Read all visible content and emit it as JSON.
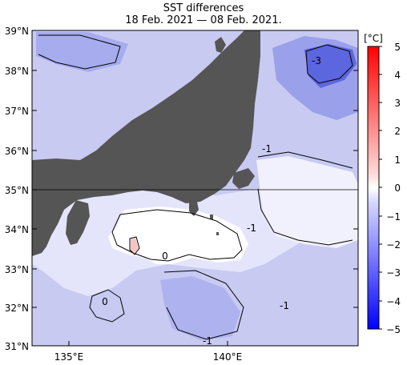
{
  "map": {
    "title": "SST differences",
    "subtitle": "18 Feb. 2021 — 08 Feb. 2021.",
    "lat_labels": [
      "39°N",
      "38°N",
      "37°N",
      "36°N",
      "35°N",
      "34°N",
      "33°N",
      "32°N",
      "31°N"
    ],
    "lon_labels": [
      "135°E",
      "140°E"
    ],
    "contour_labels": [
      "-3",
      "-1",
      "-1",
      "0",
      "0",
      "-1",
      "-1"
    ],
    "colors": {
      "land": "#555555",
      "ocean_zero": "#ffffff",
      "ocean_neg": "#c6c8f2",
      "ocean_neg2": "#9ea4ec",
      "ocean_neg3": "#5a66e0"
    }
  },
  "colorbar": {
    "unit": "[°C]",
    "ticks": [
      "5",
      "4",
      "3",
      "2",
      "1",
      "0",
      "−1",
      "−2",
      "−3",
      "−4",
      "−5"
    ],
    "colors": {
      "max": "#ff0000",
      "zero": "#ffffff",
      "min": "#0000ff"
    }
  }
}
